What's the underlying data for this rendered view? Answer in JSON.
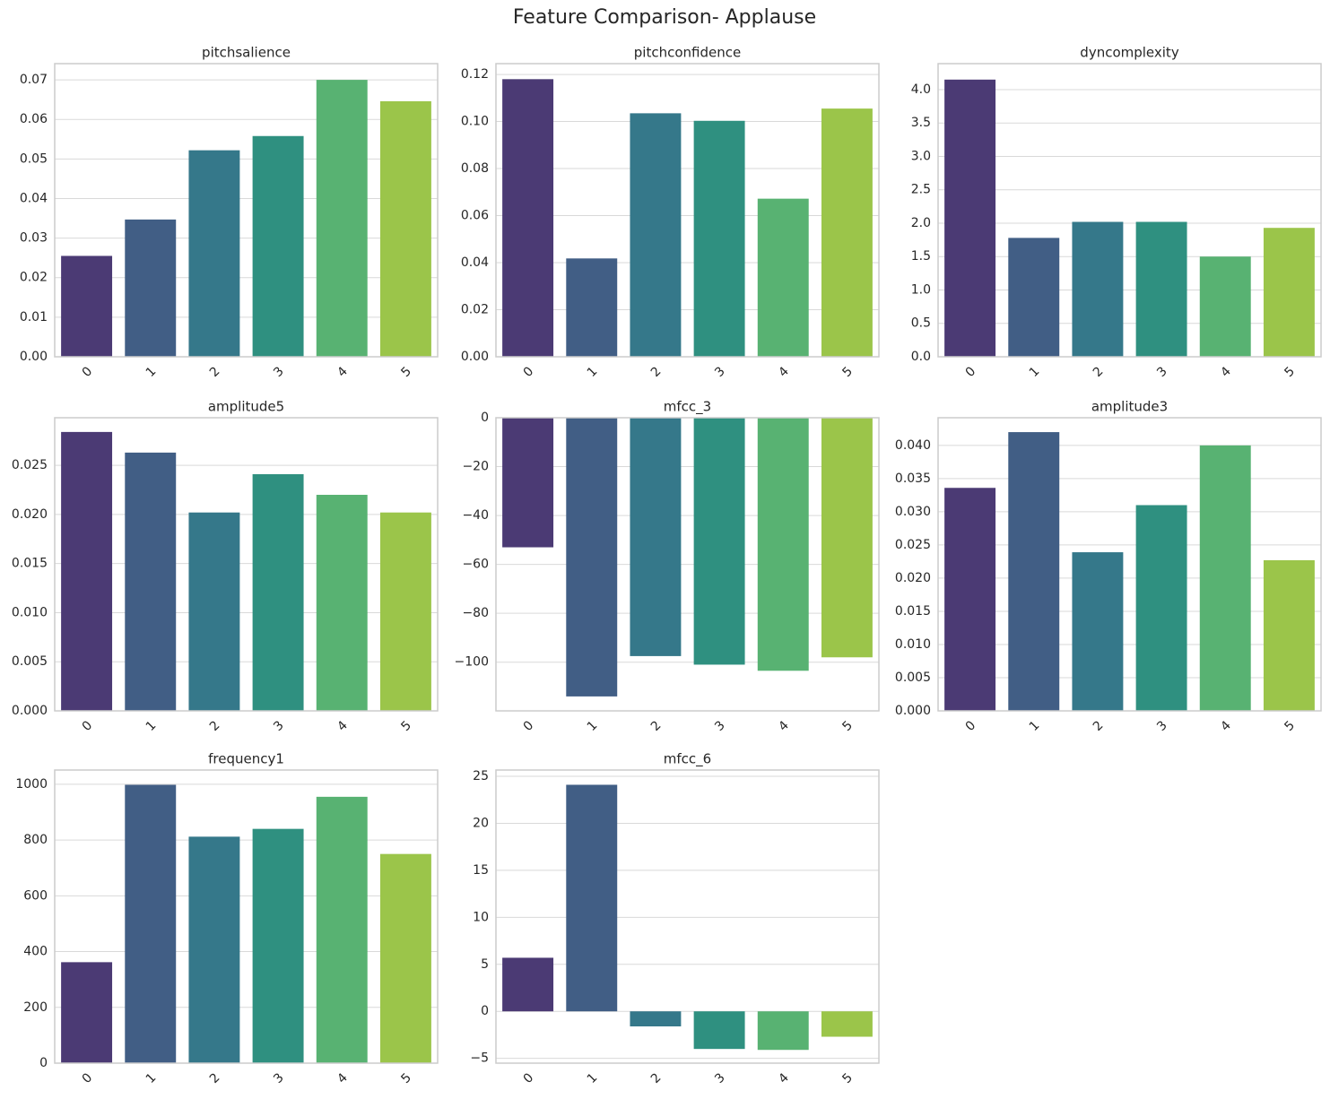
{
  "title": "Feature Comparison- Applause",
  "chart_data": [
    {
      "type": "bar",
      "title": "pitchsalience",
      "categories": [
        "0",
        "1",
        "2",
        "3",
        "4",
        "5"
      ],
      "values": [
        0.0255,
        0.0347,
        0.0522,
        0.0558,
        0.07,
        0.0646
      ],
      "colors": [
        "#4b3a74",
        "#415e85",
        "#35788a",
        "#2f9080",
        "#58b272",
        "#9bc54a"
      ],
      "ylim": [
        0,
        0.0741
      ],
      "yticks": [
        {
          "value": 0,
          "label": "0.00"
        },
        0.01,
        0.02,
        0.03,
        0.04,
        0.05,
        0.06,
        0.07
      ],
      "grid": true
    },
    {
      "type": "bar",
      "title": "pitchconfidence",
      "categories": [
        "0",
        "1",
        "2",
        "3",
        "4",
        "5"
      ],
      "values": [
        0.118,
        0.0418,
        0.1035,
        0.1003,
        0.0672,
        0.1055
      ],
      "colors": [
        "#4b3a74",
        "#415e85",
        "#35788a",
        "#2f9080",
        "#58b272",
        "#9bc54a"
      ],
      "ylim": [
        0,
        0.1246
      ],
      "yticks": [
        {
          "value": 0,
          "label": "0.00"
        },
        0.02,
        0.04,
        0.06,
        0.08,
        {
          "value": 0.1,
          "label": "0.10"
        },
        0.12
      ],
      "grid": true
    },
    {
      "type": "bar",
      "title": "dyncomplexity",
      "categories": [
        "0",
        "1",
        "2",
        "3",
        "4",
        "5"
      ],
      "values": [
        4.15,
        1.78,
        2.02,
        2.02,
        1.5,
        1.93
      ],
      "colors": [
        "#4b3a74",
        "#415e85",
        "#35788a",
        "#2f9080",
        "#58b272",
        "#9bc54a"
      ],
      "ylim": [
        0,
        4.389
      ],
      "yticks": [
        {
          "value": 0,
          "label": "0.0"
        },
        0.5,
        {
          "value": 1,
          "label": "1.0"
        },
        1.5,
        {
          "value": 2,
          "label": "2.0"
        },
        2.5,
        {
          "value": 3,
          "label": "3.0"
        },
        3.5,
        {
          "value": 4,
          "label": "4.0"
        }
      ],
      "grid": true
    },
    {
      "type": "bar",
      "title": "amplitude5",
      "categories": [
        "0",
        "1",
        "2",
        "3",
        "4",
        "5"
      ],
      "values": [
        0.0284,
        0.0263,
        0.0202,
        0.0241,
        0.022,
        0.0202
      ],
      "colors": [
        "#4b3a74",
        "#415e85",
        "#35788a",
        "#2f9080",
        "#58b272",
        "#9bc54a"
      ],
      "ylim": [
        0,
        0.02985
      ],
      "yticks": [
        {
          "value": 0,
          "label": "0.000"
        },
        0.005,
        {
          "value": 0.01,
          "label": "0.010"
        },
        0.015,
        {
          "value": 0.02,
          "label": "0.020"
        },
        0.025
      ],
      "grid": true
    },
    {
      "type": "bar",
      "title": "mfcc_3",
      "categories": [
        "0",
        "1",
        "2",
        "3",
        "4",
        "5"
      ],
      "values": [
        -53,
        -114,
        -97.5,
        -101,
        -103.5,
        -98
      ],
      "colors": [
        "#4b3a74",
        "#415e85",
        "#35788a",
        "#2f9080",
        "#58b272",
        "#9bc54a"
      ],
      "ylim": [
        -119.9,
        0
      ],
      "yticks": [
        {
          "value": -100,
          "label": "−100"
        },
        {
          "value": -80,
          "label": "−80"
        },
        {
          "value": -60,
          "label": "−60"
        },
        {
          "value": -40,
          "label": "−40"
        },
        {
          "value": -20,
          "label": "−20"
        },
        0
      ],
      "grid": true
    },
    {
      "type": "bar",
      "title": "amplitude3",
      "categories": [
        "0",
        "1",
        "2",
        "3",
        "4",
        "5"
      ],
      "values": [
        0.0336,
        0.042,
        0.0239,
        0.031,
        0.04,
        0.0227
      ],
      "colors": [
        "#4b3a74",
        "#415e85",
        "#35788a",
        "#2f9080",
        "#58b272",
        "#9bc54a"
      ],
      "ylim": [
        0,
        0.04417
      ],
      "yticks": [
        {
          "value": 0,
          "label": "0.000"
        },
        0.005,
        {
          "value": 0.01,
          "label": "0.010"
        },
        0.015,
        {
          "value": 0.02,
          "label": "0.020"
        },
        0.025,
        {
          "value": 0.03,
          "label": "0.030"
        },
        0.035,
        {
          "value": 0.04,
          "label": "0.040"
        }
      ],
      "grid": true
    },
    {
      "type": "bar",
      "title": "frequency1",
      "categories": [
        "0",
        "1",
        "2",
        "3",
        "4",
        "5"
      ],
      "values": [
        362,
        998,
        812,
        840,
        955,
        750
      ],
      "colors": [
        "#4b3a74",
        "#415e85",
        "#35788a",
        "#2f9080",
        "#58b272",
        "#9bc54a"
      ],
      "ylim": [
        0,
        1051
      ],
      "yticks": [
        0,
        200,
        400,
        600,
        800,
        1000
      ],
      "grid": true
    },
    {
      "type": "bar",
      "title": "mfcc_6",
      "categories": [
        "0",
        "1",
        "2",
        "3",
        "4",
        "5"
      ],
      "values": [
        5.7,
        24.1,
        -1.6,
        -4.0,
        -4.1,
        -2.7
      ],
      "colors": [
        "#4b3a74",
        "#415e85",
        "#35788a",
        "#2f9080",
        "#58b272",
        "#9bc54a"
      ],
      "ylim": [
        -5.51,
        25.67
      ],
      "yticks": [
        {
          "value": -5,
          "label": "−5"
        },
        0,
        5,
        10,
        15,
        20,
        25
      ],
      "grid": true
    }
  ]
}
